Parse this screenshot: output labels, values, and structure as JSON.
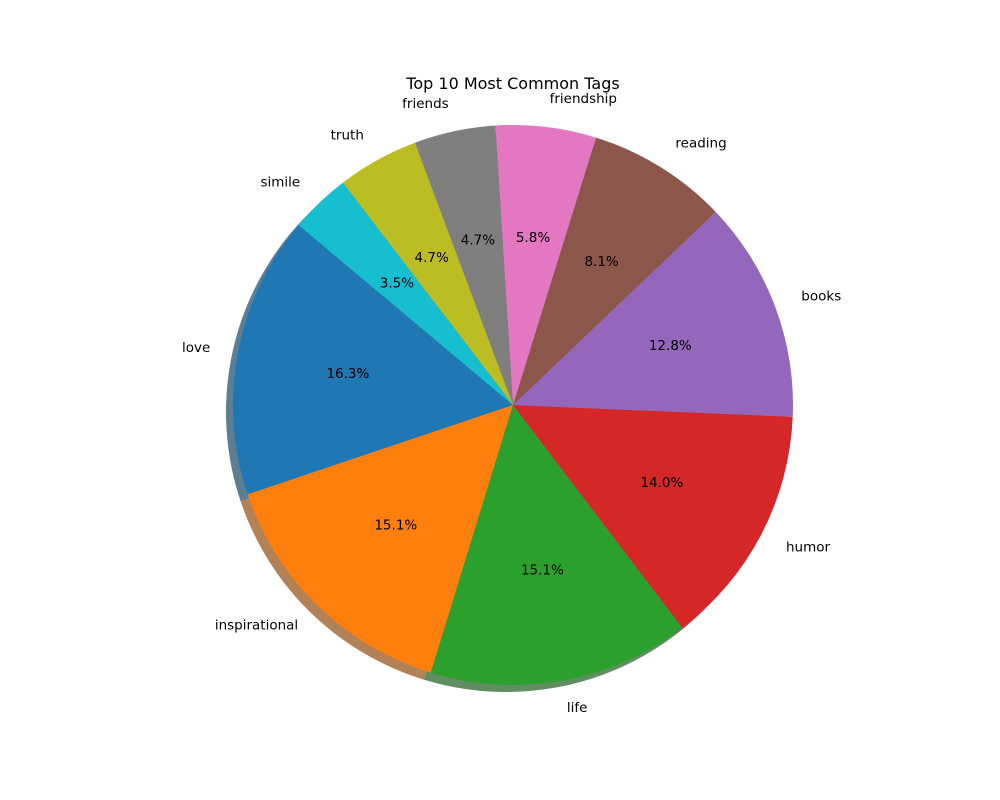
{
  "chart_data": {
    "type": "pie",
    "title": "Top 10 Most Common Tags",
    "start_angle_deg": 140,
    "counterclockwise": true,
    "shadow": true,
    "slices": [
      {
        "label": "love",
        "value": 16.3,
        "pct_text": "16.3%",
        "color": "#1f77b4"
      },
      {
        "label": "inspirational",
        "value": 15.1,
        "pct_text": "15.1%",
        "color": "#ff7f0e"
      },
      {
        "label": "life",
        "value": 15.1,
        "pct_text": "15.1%",
        "color": "#2ca02c"
      },
      {
        "label": "humor",
        "value": 14.0,
        "pct_text": "14.0%",
        "color": "#d62728"
      },
      {
        "label": "books",
        "value": 12.8,
        "pct_text": "12.8%",
        "color": "#9467bd"
      },
      {
        "label": "reading",
        "value": 8.1,
        "pct_text": "8.1%",
        "color": "#8c564b"
      },
      {
        "label": "friendship",
        "value": 5.8,
        "pct_text": "5.8%",
        "color": "#e377c2"
      },
      {
        "label": "friends",
        "value": 4.7,
        "pct_text": "4.7%",
        "color": "#7f7f7f"
      },
      {
        "label": "truth",
        "value": 4.7,
        "pct_text": "4.7%",
        "color": "#bcbd22"
      },
      {
        "label": "simile",
        "value": 3.5,
        "pct_text": "3.5%",
        "color": "#17becf"
      }
    ]
  }
}
